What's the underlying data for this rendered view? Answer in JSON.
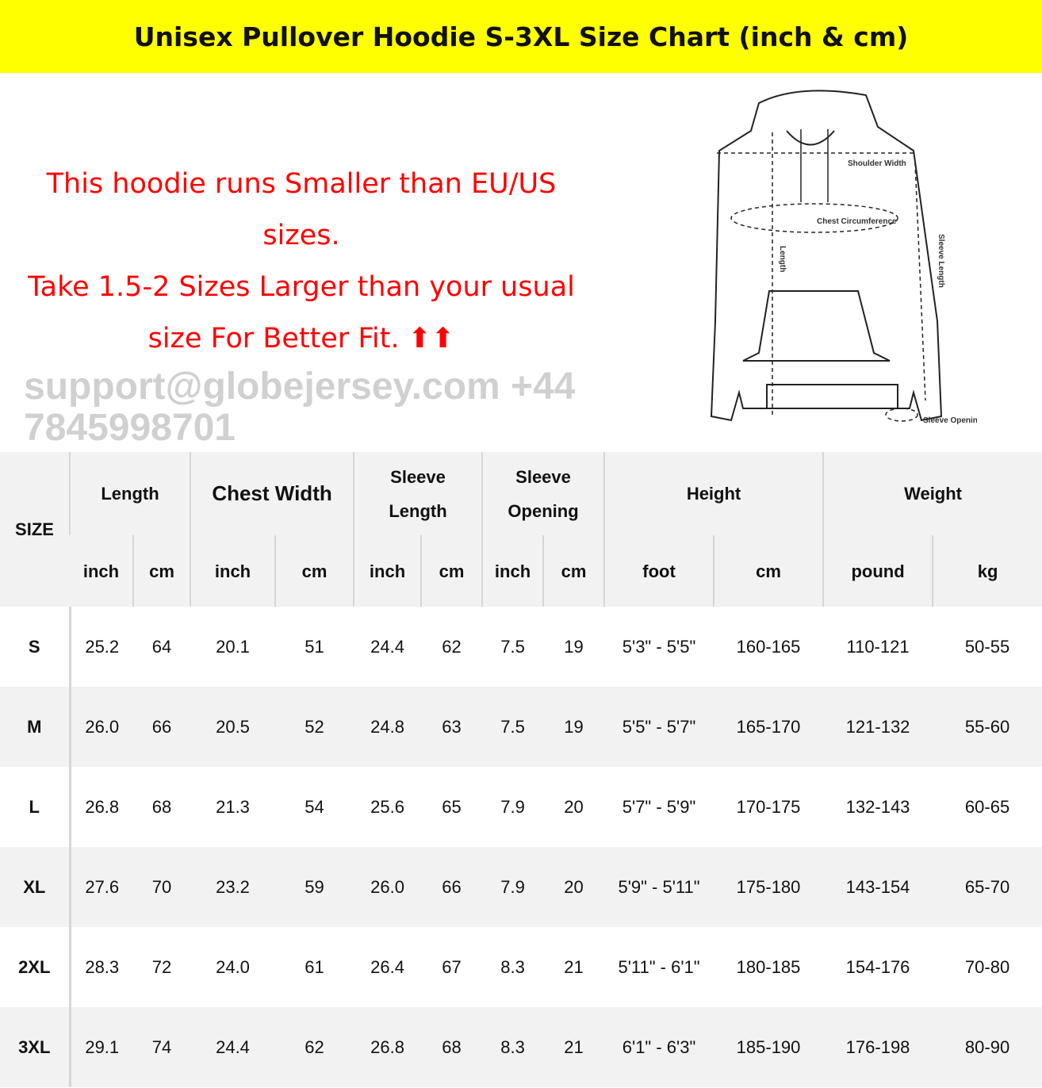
{
  "title": "Unisex Pullover Hoodie S-3XL Size Chart (inch & cm)",
  "notice": {
    "line1": "This hoodie runs Smaller than EU/US sizes.",
    "line2": "Take 1.5-2 Sizes Larger than your usual size For Better Fit. ⬆⬆"
  },
  "colors": {
    "banner": "#ffff00",
    "notice": "#ff0000",
    "header_bg": "#f2f2f2"
  },
  "diagram": {
    "labels": {
      "shoulder": "Shoulder Width",
      "chest": "Chest Circumference",
      "length": "Length",
      "sleeve_length": "Sleeve Length",
      "sleeve_opening": "Sleeve Opening"
    }
  },
  "watermark": "support@globejersey.com  +44 7845998701",
  "table": {
    "size_header": "SIZE",
    "groups": [
      "Length",
      "Chest Width",
      "Sleeve Length",
      "Sleeve Opening",
      "Height",
      "Weight"
    ],
    "units": [
      "inch",
      "cm",
      "inch",
      "cm",
      "inch",
      "cm",
      "inch",
      "cm",
      "foot",
      "cm",
      "pound",
      "kg"
    ],
    "rows": [
      [
        "S",
        "25.2",
        "64",
        "20.1",
        "51",
        "24.4",
        "62",
        "7.5",
        "19",
        "5'3\" - 5'5\"",
        "160-165",
        "110-121",
        "50-55"
      ],
      [
        "M",
        "26.0",
        "66",
        "20.5",
        "52",
        "24.8",
        "63",
        "7.5",
        "19",
        "5'5\" - 5'7\"",
        "165-170",
        "121-132",
        "55-60"
      ],
      [
        "L",
        "26.8",
        "68",
        "21.3",
        "54",
        "25.6",
        "65",
        "7.9",
        "20",
        "5'7\" - 5'9\"",
        "170-175",
        "132-143",
        "60-65"
      ],
      [
        "XL",
        "27.6",
        "70",
        "23.2",
        "59",
        "26.0",
        "66",
        "7.9",
        "20",
        "5'9\" - 5'11\"",
        "175-180",
        "143-154",
        "65-70"
      ],
      [
        "2XL",
        "28.3",
        "72",
        "24.0",
        "61",
        "26.4",
        "67",
        "8.3",
        "21",
        "5'11\" - 6'1\"",
        "180-185",
        "154-176",
        "70-80"
      ],
      [
        "3XL",
        "29.1",
        "74",
        "24.4",
        "62",
        "26.8",
        "68",
        "8.3",
        "21",
        "6'1\" - 6'3\"",
        "185-190",
        "176-198",
        "80-90"
      ]
    ]
  }
}
